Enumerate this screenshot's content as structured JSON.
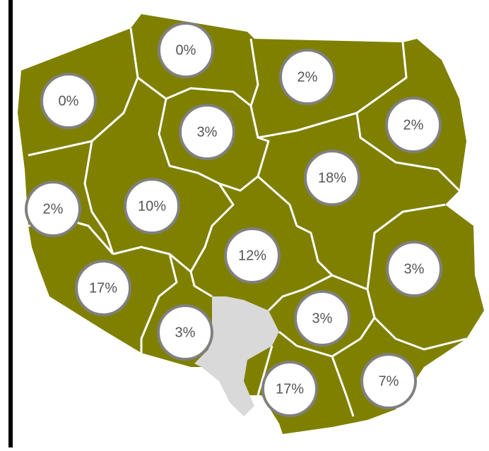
{
  "regions": [
    {
      "label": "0%"
    },
    {
      "label": "0%"
    },
    {
      "label": "2%"
    },
    {
      "label": "2%"
    },
    {
      "label": "3%"
    },
    {
      "label": "18%"
    },
    {
      "label": "2%"
    },
    {
      "label": "10%"
    },
    {
      "label": "12%"
    },
    {
      "label": "3%"
    },
    {
      "label": "17%"
    },
    {
      "label": "3%"
    },
    {
      "label": "3%"
    },
    {
      "label": "17%"
    },
    {
      "label": "7%"
    }
  ]
}
